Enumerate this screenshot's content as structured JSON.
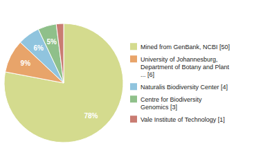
{
  "chart_data": {
    "type": "pie",
    "categories": [
      "Mined from GenBank, NCBI [50]",
      "University of Johannesburg,\nDepartment of Botany and Plant\n... [6]",
      "Naturalis Biodiversity Center [4]",
      "Centre for Biodiversity\nGenomics [3]",
      "Vale Institute of Technology [1]"
    ],
    "values": [
      78,
      9,
      6,
      5,
      2
    ],
    "value_labels": [
      "78%",
      "9%",
      "6%",
      "5%",
      null
    ],
    "colors": [
      "#d4db8e",
      "#e8a46a",
      "#90c4de",
      "#8fc08a",
      "#c97c72"
    ],
    "data_labels": true,
    "legend": "right"
  }
}
